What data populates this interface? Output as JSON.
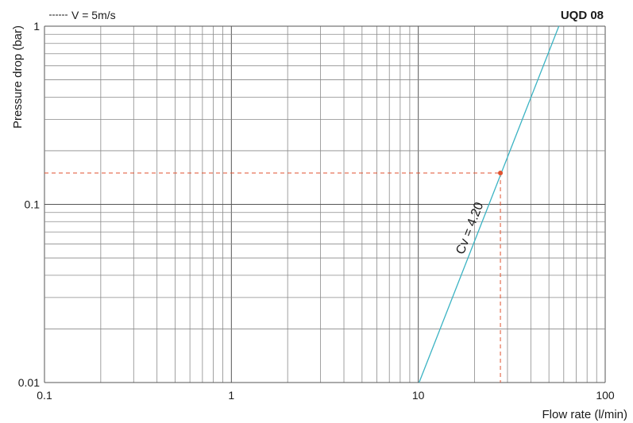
{
  "chart_data": {
    "type": "line",
    "title": "UQD 08",
    "xlabel": "Flow rate (l/min)",
    "ylabel": "Pressure drop (bar)",
    "x_scale": "log",
    "y_scale": "log",
    "xlim": [
      0.1,
      100
    ],
    "ylim": [
      0.01,
      1
    ],
    "x_ticks": [
      {
        "value": 0.1,
        "label": "0.1"
      },
      {
        "value": 1,
        "label": "1"
      },
      {
        "value": 10,
        "label": "10"
      },
      {
        "value": 100,
        "label": "100"
      }
    ],
    "y_ticks": [
      {
        "value": 0.01,
        "label": "0.01"
      },
      {
        "value": 0.1,
        "label": "0.1"
      },
      {
        "value": 1,
        "label": "1"
      }
    ],
    "grid": true,
    "legend": {
      "position": "top-left",
      "label": "V = 5m/s",
      "style": "dashed"
    },
    "series": [
      {
        "name": "Cv = 4.20",
        "color": "#3bb3c3",
        "x": [
          10.1,
          56.5
        ],
        "y": [
          0.01,
          1
        ]
      }
    ],
    "marker": {
      "x": 27.5,
      "y": 0.15,
      "color": "#e0522f"
    },
    "reference_lines_color": "#e0522f"
  }
}
